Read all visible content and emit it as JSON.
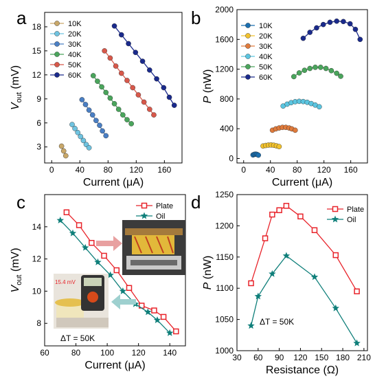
{
  "chart_data": [
    {
      "id": "a",
      "type": "line",
      "panel_letter": "a",
      "xlabel": "Current (μA)",
      "ylabel": "V",
      "ylabel_sub": "out",
      "ylabel_unit": " (mV)",
      "xlim": [
        -10,
        185
      ],
      "ylim": [
        1,
        19.8
      ],
      "xticks": [
        0,
        40,
        80,
        120,
        160
      ],
      "yticks": [
        3,
        6,
        9,
        12,
        15,
        18
      ],
      "legend_placement": "top-left",
      "series": [
        {
          "name": "10K",
          "color": "#c9a86a",
          "x": [
            14,
            17,
            20
          ],
          "y": [
            3.1,
            2.5,
            1.9
          ]
        },
        {
          "name": "20K",
          "color": "#6fc3e0",
          "x": [
            29,
            33,
            37,
            41,
            45,
            49,
            53
          ],
          "y": [
            5.8,
            5.3,
            4.8,
            4.3,
            3.8,
            3.3,
            2.9
          ]
        },
        {
          "name": "30K",
          "color": "#4a7fc4",
          "x": [
            43,
            48,
            53,
            58,
            63,
            68,
            72,
            77
          ],
          "y": [
            8.9,
            8.3,
            7.6,
            7.0,
            6.3,
            5.7,
            5.0,
            4.4
          ]
        },
        {
          "name": "40K",
          "color": "#4aa55c",
          "x": [
            59,
            65,
            71,
            77,
            83,
            89,
            95,
            101,
            107,
            113
          ],
          "y": [
            11.9,
            11.2,
            10.5,
            9.8,
            9.1,
            8.4,
            7.7,
            7.0,
            6.4,
            5.9
          ]
        },
        {
          "name": "50K",
          "color": "#d8584a",
          "x": [
            75,
            83,
            91,
            99,
            107,
            115,
            123,
            131,
            139,
            145
          ],
          "y": [
            15.0,
            14.1,
            13.1,
            12.2,
            11.3,
            10.4,
            9.5,
            8.6,
            7.7,
            7.0
          ]
        },
        {
          "name": "60K",
          "color": "#1a2a8c",
          "x": [
            89,
            99,
            109,
            119,
            129,
            139,
            149,
            159,
            167,
            174
          ],
          "y": [
            18.1,
            17.0,
            15.9,
            14.8,
            13.7,
            12.6,
            11.5,
            10.4,
            9.2,
            8.2
          ]
        }
      ]
    },
    {
      "id": "b",
      "type": "line",
      "panel_letter": "b",
      "xlabel": "Current (μA)",
      "ylabel": "P",
      "ylabel_unit": " (nW)",
      "xlim": [
        -10,
        185
      ],
      "ylim": [
        -60,
        2000
      ],
      "xticks": [
        0,
        40,
        80,
        120,
        160
      ],
      "yticks": [
        0,
        400,
        800,
        1200,
        1600,
        2000
      ],
      "legend_placement": "top-left",
      "series": [
        {
          "name": "10K",
          "color": "#1a6fb0",
          "x": [
            14,
            16,
            18,
            20,
            22
          ],
          "y": [
            48,
            56,
            58,
            55,
            45
          ]
        },
        {
          "name": "20K",
          "color": "#f2c22e",
          "x": [
            29,
            33,
            37,
            41,
            45,
            49,
            53
          ],
          "y": [
            168,
            175,
            180,
            182,
            178,
            170,
            160
          ]
        },
        {
          "name": "30K",
          "color": "#e07b3c",
          "x": [
            43,
            48,
            53,
            58,
            63,
            68,
            72,
            77
          ],
          "y": [
            380,
            398,
            410,
            418,
            418,
            410,
            398,
            380
          ]
        },
        {
          "name": "40K",
          "color": "#5bc5e0",
          "x": [
            59,
            65,
            71,
            77,
            83,
            89,
            95,
            101,
            107,
            113
          ],
          "y": [
            705,
            730,
            750,
            763,
            768,
            765,
            755,
            738,
            718,
            695
          ]
        },
        {
          "name": "50K",
          "color": "#4aa55c",
          "x": [
            75,
            83,
            91,
            99,
            107,
            115,
            123,
            131,
            139,
            145
          ],
          "y": [
            1100,
            1150,
            1185,
            1210,
            1225,
            1225,
            1210,
            1180,
            1145,
            1105
          ]
        },
        {
          "name": "60K",
          "color": "#1a2a8c",
          "x": [
            89,
            99,
            109,
            119,
            129,
            139,
            149,
            159,
            167,
            174
          ],
          "y": [
            1615,
            1695,
            1755,
            1800,
            1830,
            1845,
            1840,
            1810,
            1735,
            1600
          ]
        }
      ]
    },
    {
      "id": "c",
      "type": "line",
      "panel_letter": "c",
      "xlabel": "Current (μA)",
      "ylabel": "V",
      "ylabel_sub": "out",
      "ylabel_unit": " (mV)",
      "xlim": [
        60,
        150
      ],
      "ylim": [
        6.6,
        16
      ],
      "xticks": [
        60,
        80,
        100,
        120,
        140
      ],
      "yticks": [
        8,
        10,
        12,
        14
      ],
      "legend_placement": "top-right",
      "annotation": "ΔT = 50K",
      "inset_reading": "15.4 mV",
      "series": [
        {
          "name": "Plate",
          "color": "#e8232a",
          "marker": "square-open",
          "x": [
            74,
            82,
            90,
            98,
            106,
            114,
            122,
            130,
            136,
            144
          ],
          "y": [
            14.9,
            14.1,
            13.0,
            12.2,
            11.3,
            10.2,
            9.1,
            8.8,
            8.4,
            7.5
          ]
        },
        {
          "name": "Oil",
          "color": "#0f7f7a",
          "marker": "star",
          "x": [
            70,
            78,
            86,
            94,
            102,
            110,
            118,
            126,
            132,
            140
          ],
          "y": [
            14.4,
            13.6,
            12.7,
            11.8,
            11.0,
            10.0,
            9.2,
            8.7,
            8.2,
            7.4
          ]
        }
      ]
    },
    {
      "id": "d",
      "type": "line",
      "panel_letter": "d",
      "xlabel": "Resistance (Ω)",
      "ylabel": "P",
      "ylabel_unit": " (nW)",
      "xlim": [
        30,
        215
      ],
      "ylim": [
        1000,
        1250
      ],
      "xticks": [
        30,
        60,
        90,
        120,
        150,
        180,
        210
      ],
      "yticks": [
        1000,
        1050,
        1100,
        1150,
        1200,
        1250
      ],
      "legend_placement": "top-right",
      "annotation": "ΔT = 50K",
      "series": [
        {
          "name": "Plate",
          "color": "#e8232a",
          "marker": "square-open",
          "x": [
            50,
            70,
            80,
            90,
            100,
            120,
            140,
            170,
            200
          ],
          "y": [
            1108,
            1180,
            1218,
            1225,
            1232,
            1215,
            1193,
            1153,
            1095
          ]
        },
        {
          "name": "Oil",
          "color": "#0f7f7a",
          "marker": "star",
          "x": [
            50,
            60,
            80,
            100,
            140,
            170,
            200
          ],
          "y": [
            1040,
            1087,
            1123,
            1152,
            1118,
            1068,
            1012
          ]
        }
      ]
    }
  ]
}
